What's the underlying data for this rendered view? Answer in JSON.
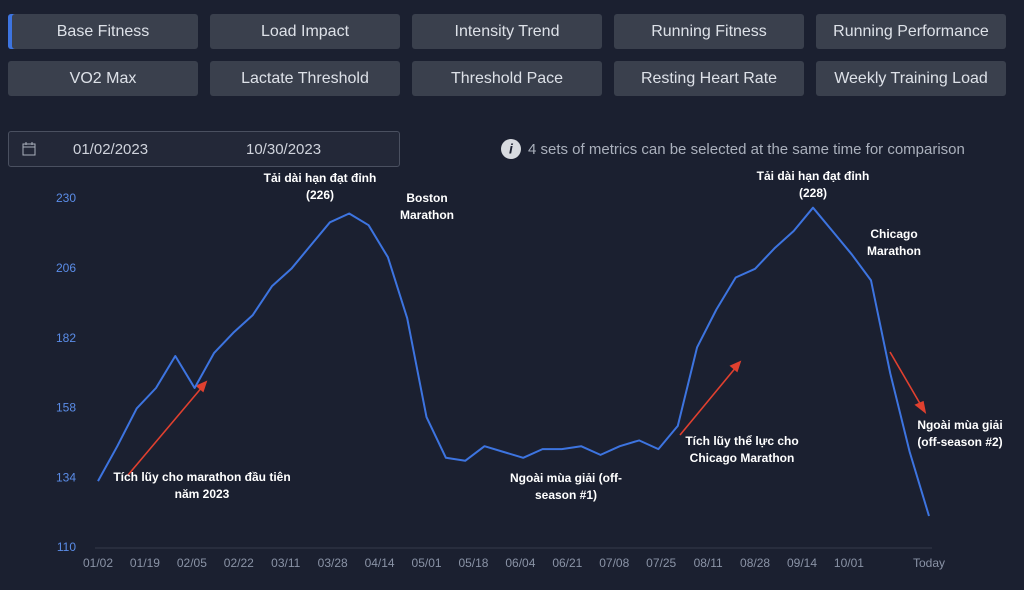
{
  "tabs": [
    "Base Fitness",
    "Load Impact",
    "Intensity Trend",
    "Running Fitness",
    "Running Performance",
    "VO2 Max",
    "Lactate Threshold",
    "Threshold Pace",
    "Resting Heart Rate",
    "Weekly Training Load"
  ],
  "date_range": {
    "start": "01/02/2023",
    "end": "10/30/2023"
  },
  "info": "4 sets of metrics can be selected at the same time for comparison",
  "chart_data": {
    "type": "line",
    "x": [
      "01/02",
      "01/09",
      "01/16",
      "01/23",
      "01/30",
      "02/06",
      "02/13",
      "02/20",
      "02/27",
      "03/06",
      "03/13",
      "03/20",
      "03/27",
      "04/03",
      "04/10",
      "04/17",
      "04/24",
      "05/01",
      "05/08",
      "05/15",
      "05/22",
      "05/29",
      "06/05",
      "06/12",
      "06/19",
      "06/26",
      "07/03",
      "07/10",
      "07/17",
      "07/24",
      "07/31",
      "08/07",
      "08/14",
      "08/21",
      "08/28",
      "09/04",
      "09/11",
      "09/18",
      "09/25",
      "10/02",
      "10/09",
      "10/16",
      "10/23",
      "10/30"
    ],
    "series": [
      {
        "color": "#3d74e0",
        "values": [
          133,
          145,
          158,
          165,
          176,
          165,
          177,
          184,
          190,
          200,
          206,
          214,
          222,
          225,
          221,
          210,
          189,
          155,
          141,
          140,
          145,
          143,
          141,
          144,
          144,
          145,
          142,
          145,
          147,
          144,
          152,
          179,
          192,
          203,
          206,
          213,
          219,
          227,
          219,
          211,
          202,
          170,
          143,
          121
        ]
      }
    ],
    "xlim": [
      "01/02",
      "10/30"
    ],
    "xticks": [
      "01/02",
      "01/19",
      "02/05",
      "02/22",
      "03/11",
      "03/28",
      "04/14",
      "05/01",
      "05/18",
      "06/04",
      "06/21",
      "07/08",
      "07/25",
      "08/11",
      "08/28",
      "09/14",
      "10/01",
      {
        "value": "10/30",
        "label": "Today"
      }
    ],
    "ylim": [
      110,
      230
    ],
    "yticks": [
      110,
      134,
      158,
      182,
      206,
      230
    ],
    "grid": false,
    "annotations": [
      "Tải dài hạn đạt đỉnh (226)",
      "Boston Marathon",
      "Tích lũy cho marathon đầu tiên năm 2023",
      "Ngoài mùa giải (off-season #1)",
      "Tích lũy thể lực cho Chicago Marathon",
      "Tải dài hạn đạt đỉnh (228)",
      "Chicago Marathon",
      "Ngoài mùa giải (off-season #2)"
    ]
  }
}
